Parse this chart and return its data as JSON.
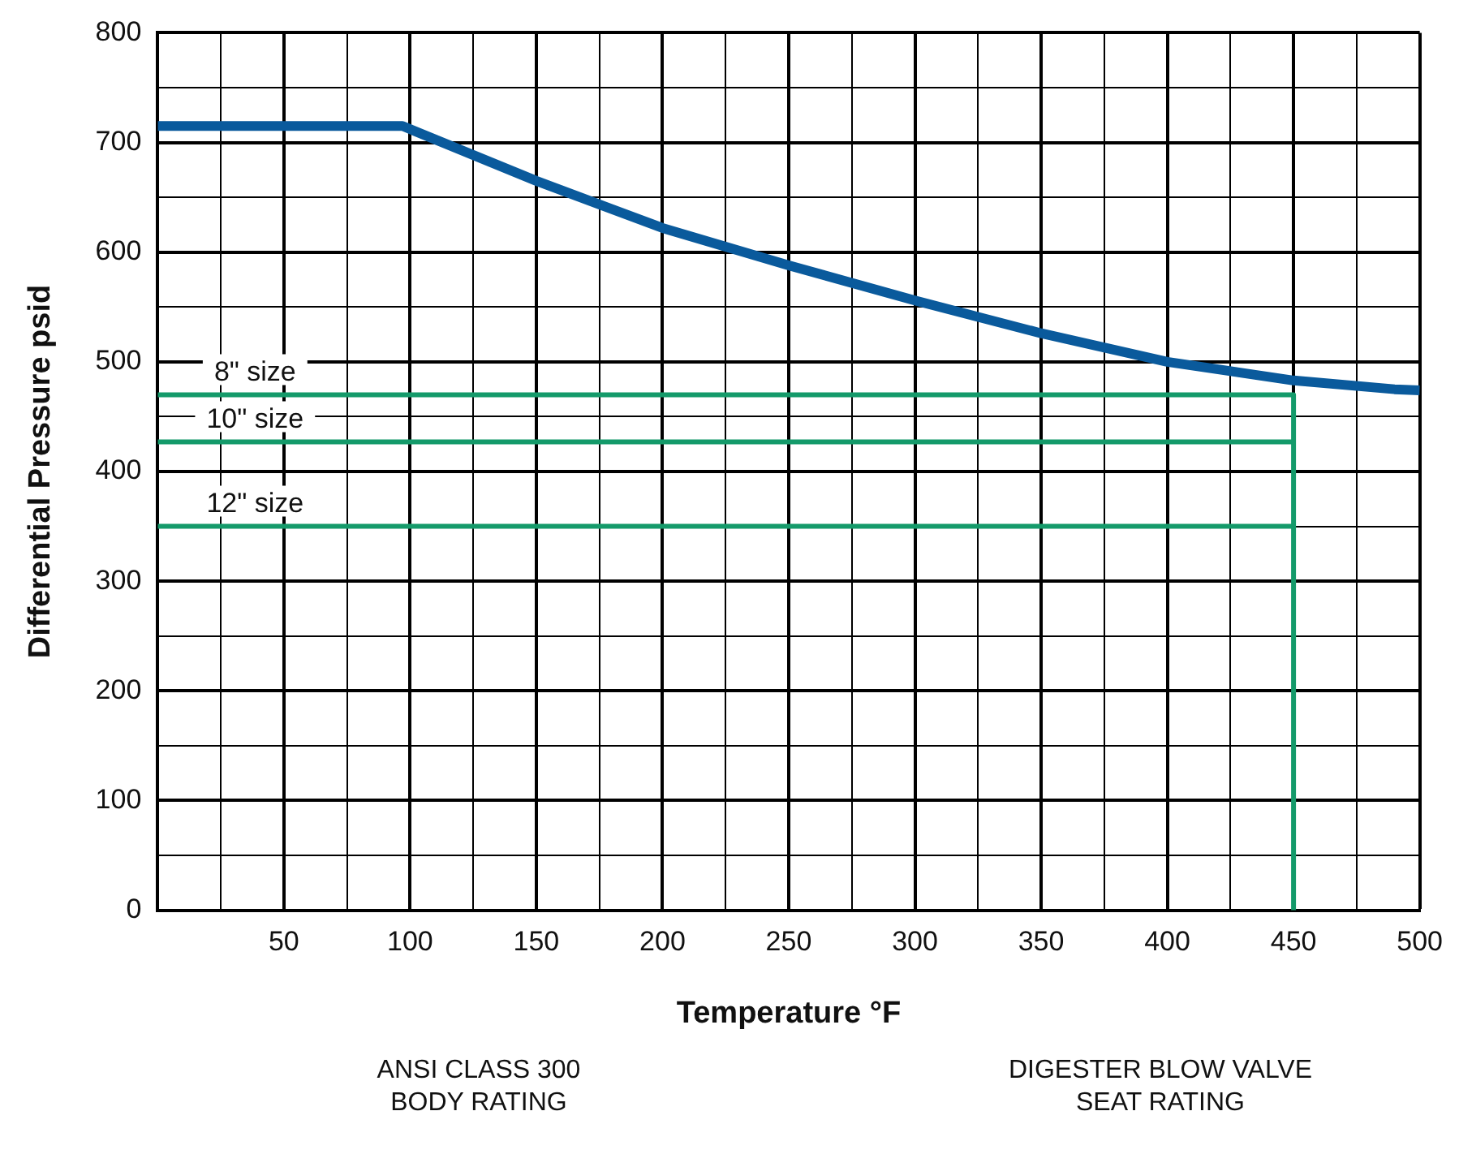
{
  "chart_data": {
    "type": "line",
    "xlabel": "Temperature °F",
    "ylabel": "Differential Pressure psid",
    "xlim": [
      0,
      500
    ],
    "ylim": [
      0,
      800
    ],
    "xticks": [
      {
        "value": 0,
        "label": null
      },
      {
        "value": 25,
        "label": null
      },
      50,
      {
        "value": 75,
        "label": null
      },
      100,
      {
        "value": 125,
        "label": null
      },
      150,
      {
        "value": 175,
        "label": null
      },
      200,
      {
        "value": 225,
        "label": null
      },
      250,
      {
        "value": 275,
        "label": null
      },
      300,
      {
        "value": 325,
        "label": null
      },
      350,
      {
        "value": 375,
        "label": null
      },
      400,
      {
        "value": 425,
        "label": null
      },
      450,
      {
        "value": 475,
        "label": null
      },
      500
    ],
    "yticks": [
      0,
      {
        "value": 50,
        "label": null
      },
      100,
      {
        "value": 150,
        "label": null
      },
      200,
      {
        "value": 250,
        "label": null
      },
      300,
      {
        "value": 350,
        "label": null
      },
      400,
      {
        "value": 450,
        "label": null
      },
      500,
      {
        "value": 550,
        "label": null
      },
      600,
      {
        "value": 650,
        "label": null
      },
      700,
      {
        "value": 750,
        "label": null
      },
      800
    ],
    "grid": true,
    "legend": false,
    "marker": "none",
    "line_style": "solid",
    "series": [
      {
        "color": "#0a5a9c",
        "x": [
          0,
          97,
          150,
          200,
          250,
          300,
          350,
          400,
          450,
          490,
          500
        ],
        "values": [
          715,
          715,
          665,
          622,
          588,
          556,
          526,
          500,
          483,
          475,
          474
        ]
      },
      {
        "name": "8\" size",
        "color": "#149a6a",
        "x": [
          0,
          450,
          450
        ],
        "values": [
          470,
          470,
          0
        ]
      },
      {
        "name": "10\" size",
        "color": "#149a6a",
        "x": [
          0,
          450
        ],
        "values": [
          427,
          427
        ]
      },
      {
        "name": "12\" size",
        "color": "#149a6a",
        "x": [
          0,
          450
        ],
        "values": [
          350,
          350
        ]
      }
    ],
    "annotations": [
      "ANSI CLASS 300\nBODY RATING",
      "DIGESTER BLOW VALVE\nSEAT RATING"
    ]
  }
}
